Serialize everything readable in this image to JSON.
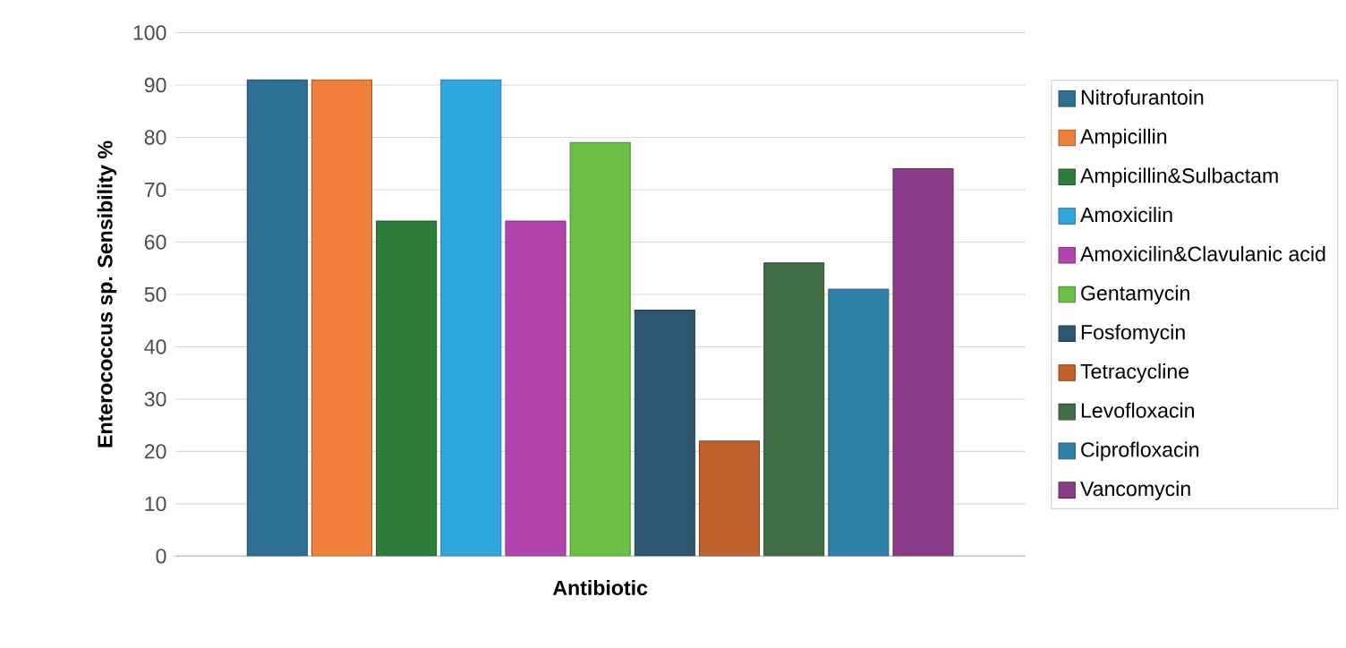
{
  "chart_data": {
    "type": "bar",
    "xlabel": "Antibiotic",
    "ylabel": "Enterococcus sp. Sensibility %",
    "categories": [
      null
    ],
    "ylim": [
      0,
      100
    ],
    "yticks": [
      0,
      10,
      20,
      30,
      40,
      50,
      60,
      70,
      80,
      90,
      100
    ],
    "grid": "y",
    "legend": "right",
    "series": [
      {
        "name": "Nitrofurantoin",
        "color": "#2e6f96",
        "values": [
          91
        ]
      },
      {
        "name": "Ampicillin",
        "color": "#f07f3c",
        "values": [
          91
        ]
      },
      {
        "name": "Ampicillin&Sulbactam",
        "color": "#2f7d3a",
        "values": [
          64
        ]
      },
      {
        "name": "Amoxicilin",
        "color": "#2fa8e0",
        "values": [
          91
        ]
      },
      {
        "name": "Amoxicilin&Clavulanic acid",
        "color": "#b344b0",
        "values": [
          64
        ]
      },
      {
        "name": "Gentamycin",
        "color": "#6bbf45",
        "values": [
          79
        ]
      },
      {
        "name": "Fosfomycin",
        "color": "#2d5770",
        "values": [
          47
        ]
      },
      {
        "name": "Tetracycline",
        "color": "#c0602a",
        "values": [
          22
        ]
      },
      {
        "name": "Levofloxacin",
        "color": "#3f6e44",
        "values": [
          56
        ]
      },
      {
        "name": "Ciprofloxacin",
        "color": "#2d7fa8",
        "values": [
          51
        ]
      },
      {
        "name": "Vancomycin",
        "color": "#8a3b87",
        "values": [
          74
        ]
      }
    ]
  }
}
